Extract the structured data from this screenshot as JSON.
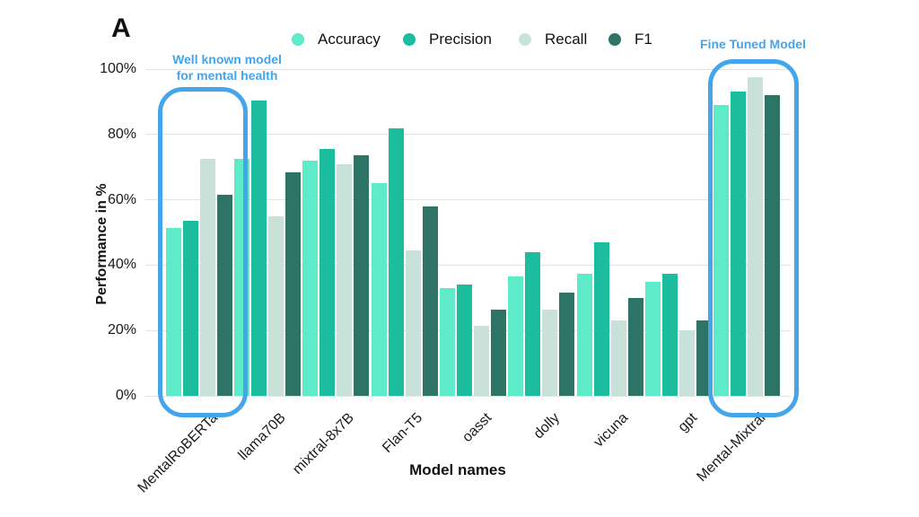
{
  "panel_label": "A",
  "annotations": {
    "well_known_line1": "Well known model",
    "well_known_line2": "for mental health",
    "fine_tuned": "Fine Tuned Model",
    "accent_color": "#45a5ea",
    "box_targets": [
      "MentalRoBERTa",
      "Mental-Mixtral"
    ]
  },
  "chart_data": {
    "type": "bar",
    "title": "",
    "xlabel": "Model names",
    "ylabel": "Performance in %",
    "ylim": [
      0,
      100
    ],
    "ytick_labels": [
      "0%",
      "20%",
      "40%",
      "60%",
      "80%",
      "100%"
    ],
    "grid": true,
    "legend_position": "top",
    "categories": [
      "MentalRoBERTa",
      "llama70B",
      "mixtral-8x7B",
      "Flan-T5",
      "oasst",
      "dolly",
      "vicuna",
      "gpt",
      "Mental-Mixtral"
    ],
    "series": [
      {
        "name": "Accuracy",
        "color": "#5debca",
        "values": [
          51.5,
          72.5,
          72.0,
          65.0,
          33.0,
          36.5,
          37.5,
          35.0,
          89.0
        ]
      },
      {
        "name": "Precision",
        "color": "#1cbd9f",
        "values": [
          53.5,
          90.5,
          75.5,
          82.0,
          34.0,
          44.0,
          47.0,
          37.5,
          93.0
        ]
      },
      {
        "name": "Recall",
        "color": "#c8e2da",
        "values": [
          72.5,
          55.0,
          71.0,
          44.5,
          21.5,
          26.5,
          23.0,
          20.0,
          97.5
        ]
      },
      {
        "name": "F1",
        "color": "#2d7466",
        "values": [
          61.5,
          68.5,
          73.5,
          58.0,
          26.5,
          31.5,
          30.0,
          23.0,
          92.0
        ]
      }
    ]
  }
}
